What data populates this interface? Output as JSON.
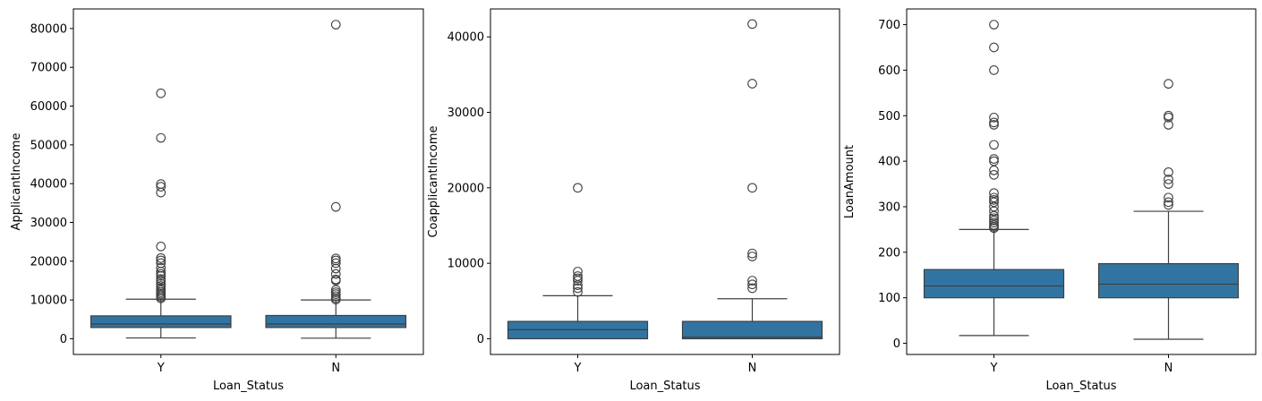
{
  "colors": {
    "box_fill": "#3274a1",
    "line": "#3f3f3f",
    "axes": "#000000"
  },
  "chart_data": [
    {
      "type": "box",
      "xlabel": "Loan_Status",
      "ylabel": "ApplicantIncome",
      "categories": [
        "Y",
        "N"
      ],
      "ylim": [
        -4050,
        85050
      ],
      "yticks": [
        0,
        10000,
        20000,
        30000,
        40000,
        50000,
        60000,
        70000,
        80000
      ],
      "ytick_labels": [
        "0",
        "10000",
        "20000",
        "30000",
        "40000",
        "50000",
        "60000",
        "70000",
        "80000"
      ],
      "boxes": [
        {
          "category": "Y",
          "whisker_low": 210,
          "q1": 2900,
          "median": 3800,
          "q3": 5900,
          "whisker_high": 10200,
          "outliers": [
            10400,
            10800,
            11200,
            11600,
            12000,
            12500,
            13000,
            13600,
            14200,
            14900,
            15400,
            16200,
            16700,
            17300,
            18300,
            19500,
            20200,
            20800,
            23800,
            37700,
            39200,
            39900,
            51800,
            63300
          ]
        },
        {
          "category": "N",
          "whisker_low": 150,
          "q1": 2900,
          "median": 3800,
          "q3": 6000,
          "whisker_high": 10000,
          "outliers": [
            10100,
            10500,
            11000,
            11500,
            12000,
            12600,
            15000,
            15300,
            16700,
            18100,
            19500,
            20200,
            20700,
            34000,
            81000
          ]
        }
      ]
    },
    {
      "type": "box",
      "xlabel": "Loan_Status",
      "ylabel": "CoapplicantIncome",
      "categories": [
        "Y",
        "N"
      ],
      "ylim": [
        -2080,
        43700
      ],
      "yticks": [
        0,
        10000,
        20000,
        30000,
        40000
      ],
      "ytick_labels": [
        "0",
        "10000",
        "20000",
        "30000",
        "40000"
      ],
      "boxes": [
        {
          "category": "Y",
          "whisker_low": 0,
          "q1": 0,
          "median": 1200,
          "q3": 2300,
          "whisker_high": 5700,
          "outliers": [
            6200,
            6700,
            7100,
            7700,
            8000,
            8300,
            8900,
            20000
          ]
        },
        {
          "category": "N",
          "whisker_low": 0,
          "q1": 0,
          "median": 200,
          "q3": 2300,
          "whisker_high": 5300,
          "outliers": [
            6700,
            7200,
            7700,
            10900,
            11300,
            20000,
            33800,
            41700
          ]
        }
      ]
    },
    {
      "type": "box",
      "xlabel": "Loan_Status",
      "ylabel": "LoanAmount",
      "categories": [
        "Y",
        "N"
      ],
      "ylim": [
        -24.5,
        734.5
      ],
      "yticks": [
        0,
        100,
        200,
        300,
        400,
        500,
        600,
        700
      ],
      "ytick_labels": [
        "0",
        "100",
        "200",
        "300",
        "400",
        "500",
        "600",
        "700"
      ],
      "boxes": [
        {
          "category": "Y",
          "whisker_low": 17,
          "q1": 100,
          "median": 126,
          "q3": 162,
          "whisker_high": 250,
          "outliers": [
            253,
            256,
            260,
            265,
            270,
            275,
            280,
            290,
            300,
            310,
            315,
            320,
            330,
            370,
            380,
            400,
            405,
            436,
            480,
            485,
            496,
            600,
            650,
            700
          ]
        },
        {
          "category": "N",
          "whisker_low": 9,
          "q1": 100,
          "median": 130,
          "q3": 175,
          "whisker_high": 290,
          "outliers": [
            304,
            310,
            320,
            350,
            360,
            376,
            480,
            496,
            500,
            570
          ]
        }
      ]
    }
  ]
}
